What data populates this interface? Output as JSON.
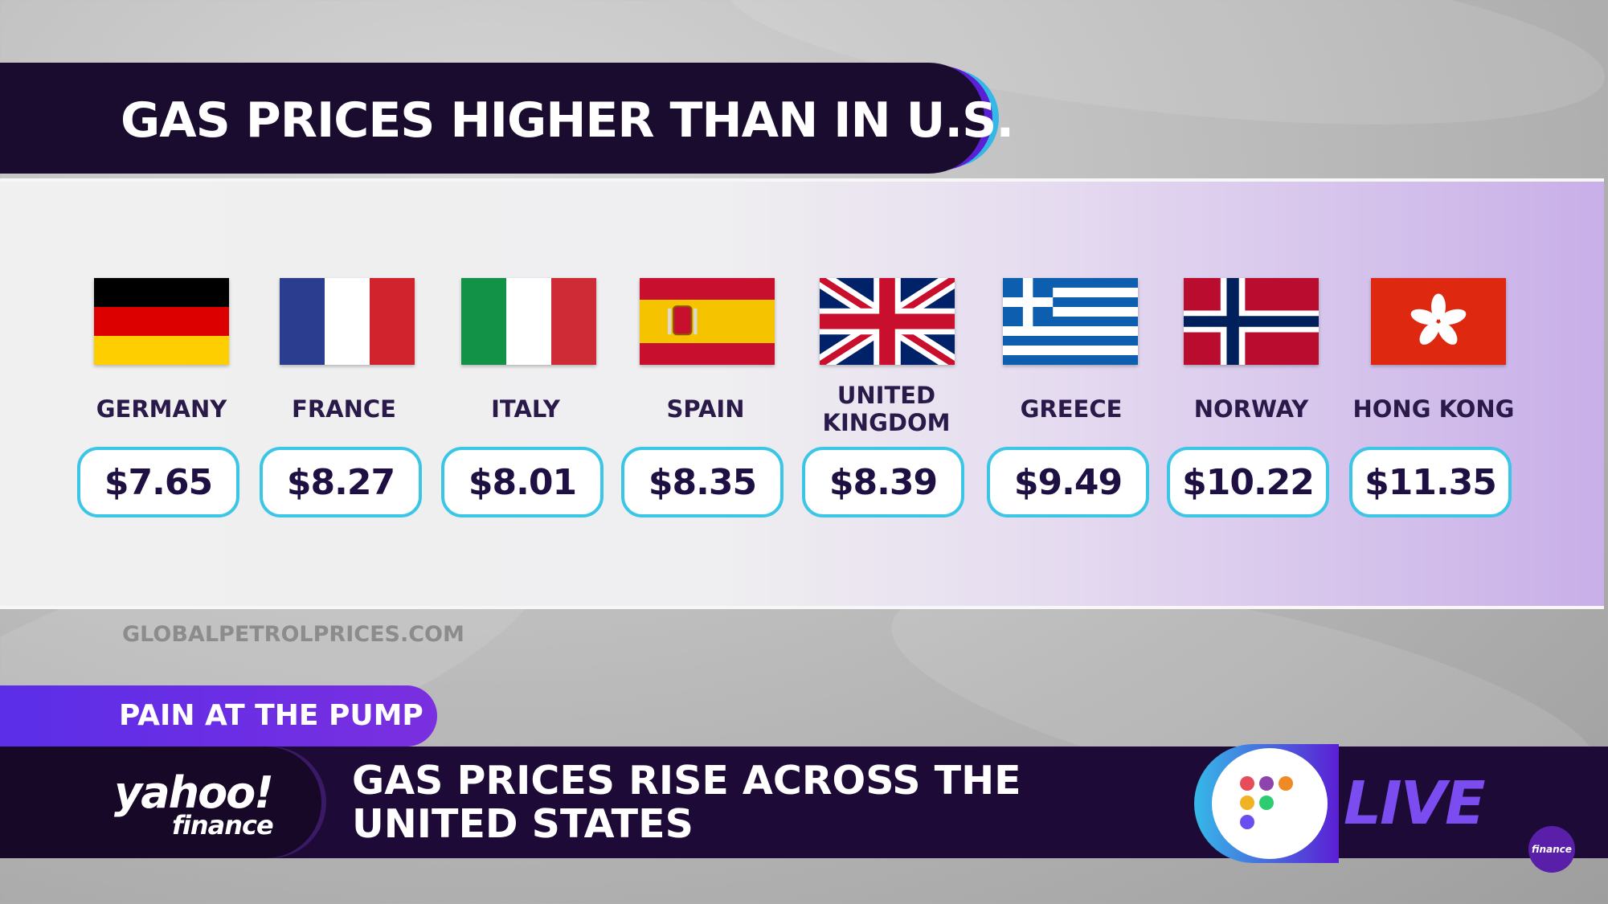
{
  "header": {
    "title": "GAS PRICES HIGHER THAN IN U.S."
  },
  "countries": [
    {
      "name": "GERMANY",
      "price": "$7.65",
      "flag_icon": "germany-flag-icon"
    },
    {
      "name": "FRANCE",
      "price": "$8.27",
      "flag_icon": "france-flag-icon"
    },
    {
      "name": "ITALY",
      "price": "$8.01",
      "flag_icon": "italy-flag-icon"
    },
    {
      "name": "SPAIN",
      "price": "$8.35",
      "flag_icon": "spain-flag-icon"
    },
    {
      "name": "UNITED KINGDOM",
      "price": "$8.39",
      "flag_icon": "uk-flag-icon"
    },
    {
      "name": "GREECE",
      "price": "$9.49",
      "flag_icon": "greece-flag-icon"
    },
    {
      "name": "NORWAY",
      "price": "$10.22",
      "flag_icon": "norway-flag-icon"
    },
    {
      "name": "HONG KONG",
      "price": "$11.35",
      "flag_icon": "hong-kong-flag-icon"
    }
  ],
  "source": "GLOBALPETROLPRICES.COM",
  "lower_third": {
    "tag": "PAIN AT THE PUMP",
    "headline": "GAS PRICES RISE ACROSS THE UNITED STATES",
    "logo_main": "yahoo!",
    "logo_sub": "finance",
    "live_label": "LIVE",
    "corner_badge": "finance"
  },
  "colors": {
    "header_bg": "#1a0c2e",
    "accent_purple": "#5b1fd4",
    "accent_cyan": "#3cc6e6",
    "price_text": "#1e1042",
    "live_text": "#7b4df0"
  }
}
